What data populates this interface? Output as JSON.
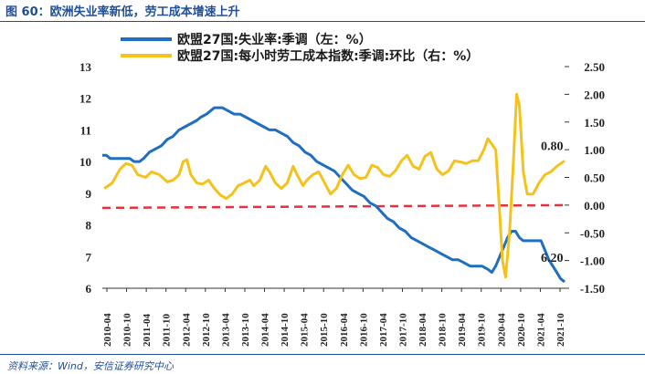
{
  "header": {
    "title": "图 60：欧洲失业率新低，劳工成本增速上升"
  },
  "footer": {
    "source": "资料来源：Wind，安信证券研究中心"
  },
  "chart_data": {
    "type": "line",
    "legend_placement": "top",
    "grid": false,
    "x_ticks": [
      "2010-04",
      "2010-10",
      "2011-04",
      "2011-10",
      "2012-04",
      "2012-10",
      "2013-04",
      "2013-10",
      "2014-04",
      "2014-10",
      "2015-04",
      "2015-10",
      "2016-04",
      "2016-10",
      "2017-04",
      "2017-10",
      "2018-04",
      "2018-10",
      "2019-04",
      "2019-10",
      "2020-04",
      "2020-10",
      "2021-04",
      "2021-10"
    ],
    "x_range": [
      2010.25,
      2022.0
    ],
    "y_left": {
      "range": [
        6,
        13
      ],
      "ticks": [
        "6",
        "7",
        "8",
        "9",
        "10",
        "11",
        "12",
        "13"
      ]
    },
    "y_right": {
      "range": [
        -1.5,
        2.5
      ],
      "ticks": [
        "-1.50",
        "-1.00",
        "-0.50",
        "0.00",
        "0.50",
        "1.00",
        "1.50",
        "2.00",
        "2.50"
      ]
    },
    "reference_line": {
      "axis": "right",
      "value": 0.0,
      "color": "#e8303a"
    },
    "series": [
      {
        "name": "欧盟27国:失业率:季调（左：%）",
        "axis": "left",
        "color": "#1f6fc0",
        "end_label": "6.20",
        "points": [
          [
            2010.25,
            10.2
          ],
          [
            2010.35,
            10.2
          ],
          [
            2010.45,
            10.1
          ],
          [
            2010.6,
            10.1
          ],
          [
            2010.8,
            10.1
          ],
          [
            2010.95,
            10.1
          ],
          [
            2011.05,
            10.0
          ],
          [
            2011.2,
            10.0
          ],
          [
            2011.3,
            10.1
          ],
          [
            2011.45,
            10.3
          ],
          [
            2011.6,
            10.4
          ],
          [
            2011.75,
            10.5
          ],
          [
            2011.9,
            10.7
          ],
          [
            2012.05,
            10.8
          ],
          [
            2012.2,
            11.0
          ],
          [
            2012.35,
            11.1
          ],
          [
            2012.5,
            11.2
          ],
          [
            2012.65,
            11.3
          ],
          [
            2012.75,
            11.4
          ],
          [
            2012.9,
            11.5
          ],
          [
            2013.0,
            11.6
          ],
          [
            2013.1,
            11.7
          ],
          [
            2013.3,
            11.7
          ],
          [
            2013.45,
            11.6
          ],
          [
            2013.6,
            11.5
          ],
          [
            2013.75,
            11.5
          ],
          [
            2013.9,
            11.4
          ],
          [
            2014.05,
            11.3
          ],
          [
            2014.2,
            11.2
          ],
          [
            2014.35,
            11.1
          ],
          [
            2014.5,
            11.0
          ],
          [
            2014.65,
            11.0
          ],
          [
            2014.8,
            10.9
          ],
          [
            2014.95,
            10.8
          ],
          [
            2015.1,
            10.6
          ],
          [
            2015.25,
            10.5
          ],
          [
            2015.4,
            10.3
          ],
          [
            2015.55,
            10.2
          ],
          [
            2015.7,
            10.0
          ],
          [
            2015.85,
            9.9
          ],
          [
            2016.0,
            9.8
          ],
          [
            2016.15,
            9.7
          ],
          [
            2016.3,
            9.5
          ],
          [
            2016.45,
            9.3
          ],
          [
            2016.6,
            9.1
          ],
          [
            2016.75,
            9.0
          ],
          [
            2016.9,
            8.9
          ],
          [
            2017.05,
            8.7
          ],
          [
            2017.2,
            8.6
          ],
          [
            2017.35,
            8.4
          ],
          [
            2017.5,
            8.2
          ],
          [
            2017.65,
            8.1
          ],
          [
            2017.8,
            7.9
          ],
          [
            2017.95,
            7.8
          ],
          [
            2018.1,
            7.6
          ],
          [
            2018.25,
            7.5
          ],
          [
            2018.4,
            7.4
          ],
          [
            2018.55,
            7.3
          ],
          [
            2018.7,
            7.2
          ],
          [
            2018.85,
            7.1
          ],
          [
            2019.0,
            7.0
          ],
          [
            2019.15,
            6.9
          ],
          [
            2019.3,
            6.9
          ],
          [
            2019.45,
            6.8
          ],
          [
            2019.6,
            6.7
          ],
          [
            2019.75,
            6.7
          ],
          [
            2019.9,
            6.7
          ],
          [
            2020.05,
            6.6
          ],
          [
            2020.15,
            6.5
          ],
          [
            2020.25,
            6.7
          ],
          [
            2020.35,
            7.0
          ],
          [
            2020.45,
            7.3
          ],
          [
            2020.55,
            7.6
          ],
          [
            2020.65,
            7.8
          ],
          [
            2020.75,
            7.8
          ],
          [
            2020.85,
            7.6
          ],
          [
            2020.95,
            7.5
          ],
          [
            2021.1,
            7.5
          ],
          [
            2021.25,
            7.5
          ],
          [
            2021.4,
            7.5
          ],
          [
            2021.5,
            7.2
          ],
          [
            2021.6,
            6.9
          ],
          [
            2021.7,
            6.7
          ],
          [
            2021.8,
            6.5
          ],
          [
            2021.9,
            6.3
          ],
          [
            2022.0,
            6.2
          ]
        ]
      },
      {
        "name": "欧盟27国:每小时劳工成本指数:季调:环比（右：%）",
        "axis": "right",
        "color": "#f5c21b",
        "end_label": "0.80",
        "points": [
          [
            2010.3,
            0.3
          ],
          [
            2010.5,
            0.4
          ],
          [
            2010.7,
            0.65
          ],
          [
            2010.85,
            0.75
          ],
          [
            2011.0,
            0.72
          ],
          [
            2011.15,
            0.55
          ],
          [
            2011.35,
            0.5
          ],
          [
            2011.5,
            0.6
          ],
          [
            2011.7,
            0.55
          ],
          [
            2011.9,
            0.42
          ],
          [
            2012.05,
            0.45
          ],
          [
            2012.2,
            0.55
          ],
          [
            2012.3,
            0.78
          ],
          [
            2012.4,
            0.82
          ],
          [
            2012.5,
            0.55
          ],
          [
            2012.65,
            0.4
          ],
          [
            2012.8,
            0.38
          ],
          [
            2012.95,
            0.45
          ],
          [
            2013.1,
            0.3
          ],
          [
            2013.25,
            0.18
          ],
          [
            2013.4,
            0.12
          ],
          [
            2013.55,
            0.2
          ],
          [
            2013.7,
            0.35
          ],
          [
            2013.85,
            0.4
          ],
          [
            2014.0,
            0.45
          ],
          [
            2014.1,
            0.35
          ],
          [
            2014.25,
            0.45
          ],
          [
            2014.4,
            0.7
          ],
          [
            2014.5,
            0.6
          ],
          [
            2014.65,
            0.4
          ],
          [
            2014.8,
            0.3
          ],
          [
            2014.95,
            0.4
          ],
          [
            2015.1,
            0.7
          ],
          [
            2015.2,
            0.55
          ],
          [
            2015.35,
            0.35
          ],
          [
            2015.45,
            0.45
          ],
          [
            2015.6,
            0.55
          ],
          [
            2015.75,
            0.6
          ],
          [
            2015.9,
            0.4
          ],
          [
            2016.05,
            0.2
          ],
          [
            2016.2,
            0.3
          ],
          [
            2016.35,
            0.55
          ],
          [
            2016.5,
            0.72
          ],
          [
            2016.65,
            0.55
          ],
          [
            2016.8,
            0.48
          ],
          [
            2016.95,
            0.5
          ],
          [
            2017.1,
            0.72
          ],
          [
            2017.25,
            0.68
          ],
          [
            2017.4,
            0.55
          ],
          [
            2017.55,
            0.52
          ],
          [
            2017.7,
            0.62
          ],
          [
            2017.85,
            0.8
          ],
          [
            2018.0,
            0.9
          ],
          [
            2018.15,
            0.7
          ],
          [
            2018.3,
            0.65
          ],
          [
            2018.45,
            0.88
          ],
          [
            2018.6,
            0.95
          ],
          [
            2018.75,
            0.65
          ],
          [
            2018.9,
            0.55
          ],
          [
            2019.05,
            0.62
          ],
          [
            2019.2,
            0.8
          ],
          [
            2019.35,
            0.78
          ],
          [
            2019.5,
            0.75
          ],
          [
            2019.65,
            0.8
          ],
          [
            2019.8,
            0.8
          ],
          [
            2019.95,
            1.0
          ],
          [
            2020.05,
            1.2
          ],
          [
            2020.15,
            1.1
          ],
          [
            2020.25,
            1.0
          ],
          [
            2020.32,
            0.2
          ],
          [
            2020.42,
            -1.0
          ],
          [
            2020.5,
            -1.3
          ],
          [
            2020.6,
            -0.5
          ],
          [
            2020.7,
            0.8
          ],
          [
            2020.78,
            2.0
          ],
          [
            2020.85,
            1.8
          ],
          [
            2020.95,
            0.6
          ],
          [
            2021.05,
            0.2
          ],
          [
            2021.2,
            0.2
          ],
          [
            2021.35,
            0.4
          ],
          [
            2021.5,
            0.55
          ],
          [
            2021.65,
            0.6
          ],
          [
            2021.8,
            0.7
          ],
          [
            2022.0,
            0.8
          ]
        ]
      }
    ]
  }
}
